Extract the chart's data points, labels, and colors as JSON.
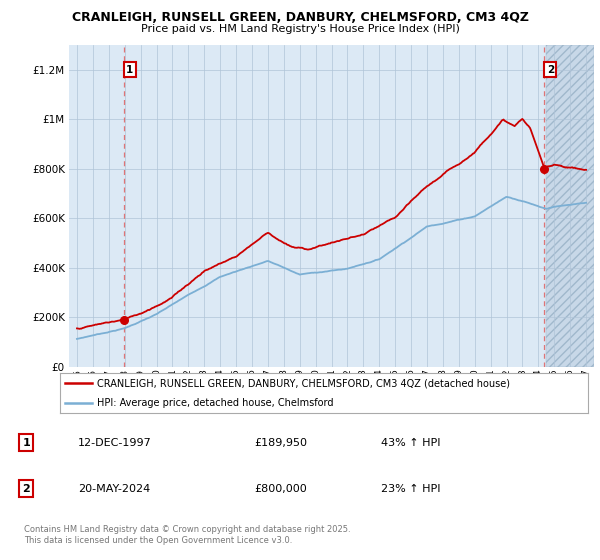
{
  "title": "CRANLEIGH, RUNSELL GREEN, DANBURY, CHELMSFORD, CM3 4QZ",
  "subtitle": "Price paid vs. HM Land Registry's House Price Index (HPI)",
  "xlim": [
    1994.5,
    2027.5
  ],
  "ylim": [
    0,
    1300000
  ],
  "yticks": [
    0,
    200000,
    400000,
    600000,
    800000,
    1000000,
    1200000
  ],
  "ytick_labels": [
    "£0",
    "£200K",
    "£400K",
    "£600K",
    "£800K",
    "£1M",
    "£1.2M"
  ],
  "xticks": [
    1995,
    1996,
    1997,
    1998,
    1999,
    2000,
    2001,
    2002,
    2003,
    2004,
    2005,
    2006,
    2007,
    2008,
    2009,
    2010,
    2011,
    2012,
    2013,
    2014,
    2015,
    2016,
    2017,
    2018,
    2019,
    2020,
    2021,
    2022,
    2023,
    2024,
    2025,
    2026,
    2027
  ],
  "sale1_x": 1997.95,
  "sale1_y": 189950,
  "sale2_x": 2024.38,
  "sale2_y": 800000,
  "vline1_x": 1997.95,
  "vline2_x": 2024.38,
  "hatch_start_x": 2024.5,
  "red_color": "#cc0000",
  "blue_color": "#7bafd4",
  "chart_bg": "#dce9f5",
  "hatch_bg": "#c8d8e8",
  "legend_label_red": "CRANLEIGH, RUNSELL GREEN, DANBURY, CHELMSFORD, CM3 4QZ (detached house)",
  "legend_label_blue": "HPI: Average price, detached house, Chelmsford",
  "annotation1_label": "1",
  "annotation2_label": "2",
  "table_row1": [
    "1",
    "12-DEC-1997",
    "£189,950",
    "43% ↑ HPI"
  ],
  "table_row2": [
    "2",
    "20-MAY-2024",
    "£800,000",
    "23% ↑ HPI"
  ],
  "footer": "Contains HM Land Registry data © Crown copyright and database right 2025.\nThis data is licensed under the Open Government Licence v3.0.",
  "background_color": "#ffffff",
  "grid_color": "#b0c4d8"
}
